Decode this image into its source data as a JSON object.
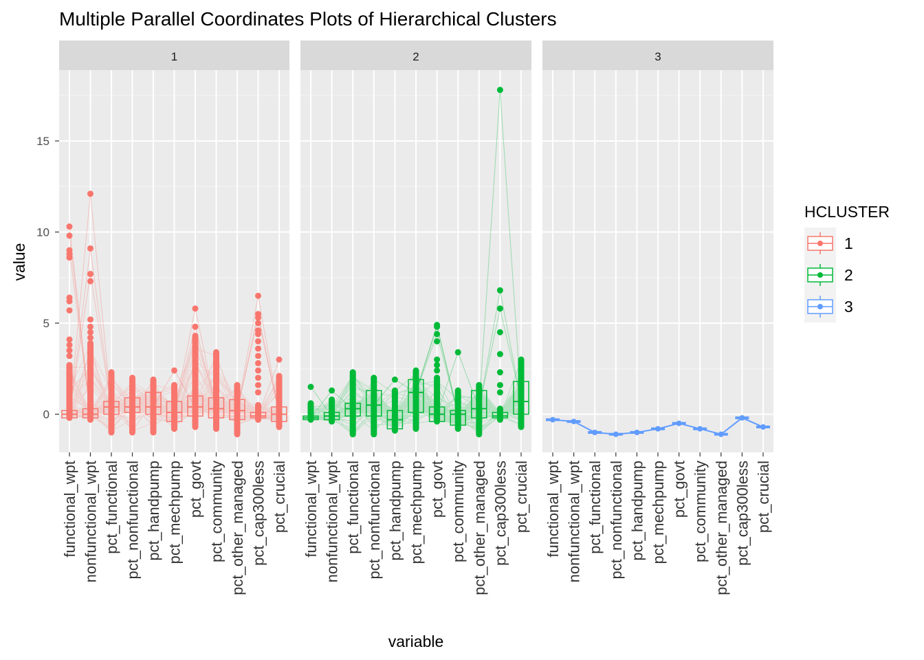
{
  "title": "Multiple Parallel Coordinates Plots of Hierarchical Clusters",
  "chart_data": {
    "type": "line",
    "title": "Multiple Parallel Coordinates Plots of Hierarchical Clusters",
    "xlabel": "variable",
    "ylabel": "value",
    "ylim": [
      -2,
      18.5
    ],
    "y_ticks": [
      0,
      5,
      10,
      15
    ],
    "grid": true,
    "legend": {
      "title": "HCLUSTER",
      "placement": "right",
      "entries": [
        "1",
        "2",
        "3"
      ]
    },
    "categories": [
      "functional_wpt",
      "nonfunctional_wpt",
      "pct_functional",
      "pct_nonfunctional",
      "pct_handpump",
      "pct_mechpump",
      "pct_govt",
      "pct_community",
      "pct_other_managed",
      "pct_cap300less",
      "pct_crucial"
    ],
    "facets": [
      {
        "label": "1",
        "color": "#F8766D",
        "boxplot": [
          {
            "q1": -0.2,
            "median": 0.0,
            "q3": 0.2
          },
          {
            "q1": -0.2,
            "median": 0.0,
            "q3": 0.3
          },
          {
            "q1": 0.0,
            "median": 0.4,
            "q3": 0.7
          },
          {
            "q1": 0.1,
            "median": 0.4,
            "q3": 0.9
          },
          {
            "q1": 0.0,
            "median": 0.4,
            "q3": 1.2
          },
          {
            "q1": -0.4,
            "median": 0.1,
            "q3": 0.7
          },
          {
            "q1": -0.1,
            "median": 0.4,
            "q3": 1.0
          },
          {
            "q1": -0.2,
            "median": 0.3,
            "q3": 0.9
          },
          {
            "q1": -0.3,
            "median": 0.2,
            "q3": 0.8
          },
          {
            "q1": -0.2,
            "median": -0.1,
            "q3": 0.1
          },
          {
            "q1": -0.4,
            "median": 0.0,
            "q3": 0.4
          }
        ],
        "ranges": [
          [
            -0.2,
            2.7
          ],
          [
            -0.3,
            3.9
          ],
          [
            -1.0,
            2.3
          ],
          [
            -1.0,
            2.0
          ],
          [
            -1.0,
            1.9
          ],
          [
            -0.8,
            1.6
          ],
          [
            -0.7,
            4.3
          ],
          [
            -0.8,
            3.4
          ],
          [
            -1.1,
            1.6
          ],
          [
            -0.3,
            0.5
          ],
          [
            -0.7,
            2.1
          ]
        ],
        "outliers": [
          [
            10.3,
            9.8,
            9.0,
            8.8,
            8.6,
            6.4,
            6.2,
            5.7,
            4.1,
            3.8,
            3.5,
            3.2
          ],
          [
            12.1,
            9.1,
            7.7,
            7.3,
            5.2,
            4.8,
            4.5,
            4.2
          ],
          [],
          [],
          [],
          [
            2.4
          ],
          [
            5.8,
            4.8
          ],
          [],
          [],
          [
            6.5,
            5.5,
            5.3,
            5.0,
            4.6,
            4.4,
            4.0,
            3.6,
            3.2,
            2.8,
            2.4,
            2.0,
            1.6,
            1.2
          ],
          [
            3.0
          ]
        ]
      },
      {
        "label": "2",
        "color": "#00BA38",
        "boxplot": [
          {
            "q1": -0.3,
            "median": -0.2,
            "q3": -0.1
          },
          {
            "q1": -0.3,
            "median": -0.1,
            "q3": 0.1
          },
          {
            "q1": -0.1,
            "median": 0.3,
            "q3": 0.6
          },
          {
            "q1": -0.1,
            "median": 0.5,
            "q3": 1.3
          },
          {
            "q1": -0.8,
            "median": -0.3,
            "q3": 0.2
          },
          {
            "q1": 0.1,
            "median": 1.2,
            "q3": 1.9
          },
          {
            "q1": -0.4,
            "median": 0.0,
            "q3": 0.4
          },
          {
            "q1": -0.6,
            "median": 0.0,
            "q3": 0.2
          },
          {
            "q1": -0.2,
            "median": 0.3,
            "q3": 1.3
          },
          {
            "q1": -0.2,
            "median": -0.1,
            "q3": 0.1
          },
          {
            "q1": 0.0,
            "median": 0.7,
            "q3": 1.8
          }
        ],
        "ranges": [
          [
            -0.3,
            0.6
          ],
          [
            -0.4,
            0.8
          ],
          [
            -1.1,
            2.3
          ],
          [
            -1.1,
            2.0
          ],
          [
            -0.9,
            1.3
          ],
          [
            -0.8,
            2.4
          ],
          [
            -0.4,
            1.9
          ],
          [
            -0.8,
            1.3
          ],
          [
            -1.1,
            1.6
          ],
          [
            -0.3,
            0.3
          ],
          [
            -0.7,
            3.0
          ]
        ],
        "outliers": [
          [
            1.5
          ],
          [
            1.3
          ],
          [],
          [],
          [
            1.9
          ],
          [],
          [
            4.9,
            4.8,
            4.4,
            4.0,
            3.0,
            2.7,
            2.4,
            2.0
          ],
          [
            3.4
          ],
          [],
          [
            17.8,
            6.8,
            5.8,
            4.5,
            3.3,
            2.3,
            1.6,
            1.2
          ],
          []
        ]
      },
      {
        "label": "3",
        "color": "#619CFF",
        "values": [
          -0.3,
          -0.4,
          -1.0,
          -1.1,
          -1.0,
          -0.8,
          -0.5,
          -0.8,
          -1.1,
          -0.2,
          -0.7
        ]
      }
    ]
  }
}
